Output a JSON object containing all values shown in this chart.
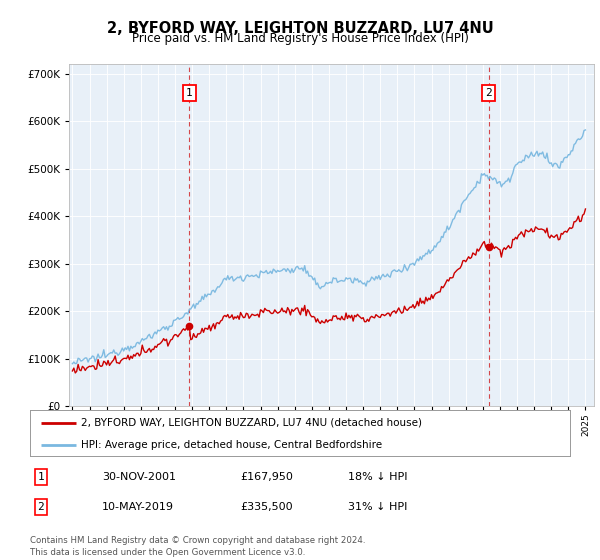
{
  "title": "2, BYFORD WAY, LEIGHTON BUZZARD, LU7 4NU",
  "subtitle": "Price paid vs. HM Land Registry's House Price Index (HPI)",
  "ylim": [
    0,
    720000
  ],
  "yticks": [
    0,
    100000,
    200000,
    300000,
    400000,
    500000,
    600000,
    700000
  ],
  "plot_bg": "#e8f0f8",
  "hpi_color": "#7ab8e0",
  "price_color": "#cc0000",
  "vline_color": "#cc0000",
  "marker1_price": 167950,
  "marker2_price": 335500,
  "legend_label1": "2, BYFORD WAY, LEIGHTON BUZZARD, LU7 4NU (detached house)",
  "legend_label2": "HPI: Average price, detached house, Central Bedfordshire",
  "note1_num": "1",
  "note1_date": "30-NOV-2001",
  "note1_price": "£167,950",
  "note1_hpi": "18% ↓ HPI",
  "note2_num": "2",
  "note2_date": "10-MAY-2019",
  "note2_price": "£335,500",
  "note2_hpi": "31% ↓ HPI",
  "footer": "Contains HM Land Registry data © Crown copyright and database right 2024.\nThis data is licensed under the Open Government Licence v3.0."
}
